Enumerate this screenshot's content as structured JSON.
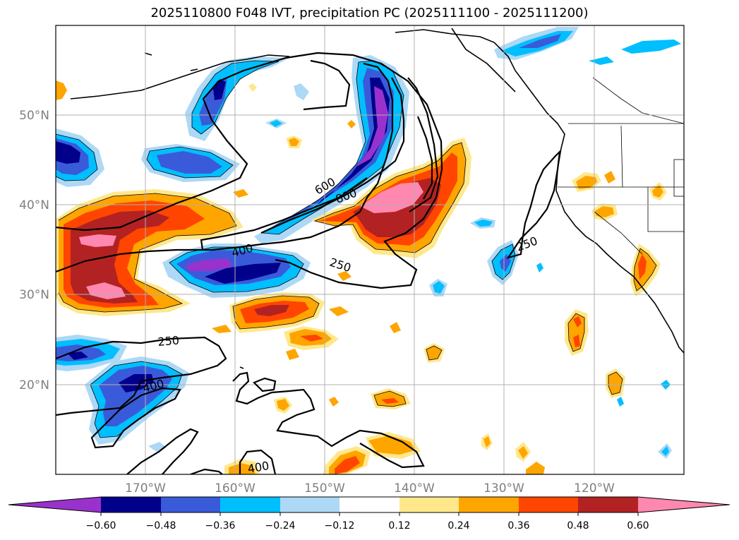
{
  "title": "2025110800 F048 IVT, precipitation PC (2025111100 - 2025111200)",
  "map": {
    "lat_labels": [
      "50°N",
      "40°N",
      "30°N",
      "20°N"
    ],
    "lon_labels": [
      "170°W",
      "160°W",
      "150°W",
      "140°W",
      "130°W",
      "120°W"
    ],
    "gridlines": true
  },
  "ivt_contours": {
    "levels": [
      250,
      400,
      600,
      800
    ],
    "labels": [
      "600",
      "800",
      "400",
      "250",
      "250",
      "250",
      "400",
      "400"
    ]
  },
  "colorbar": {
    "ticks": [
      "−0.60",
      "−0.48",
      "−0.36",
      "−0.24",
      "−0.12",
      "0.12",
      "0.24",
      "0.36",
      "0.48",
      "0.60"
    ],
    "colors": [
      "#9932cc",
      "#00008b",
      "#3a5bd9",
      "#00bfff",
      "#add8f6",
      "#ffffff",
      "#ffe88c",
      "#ffa500",
      "#ff4500",
      "#b22222",
      "#ff88b0"
    ]
  }
}
